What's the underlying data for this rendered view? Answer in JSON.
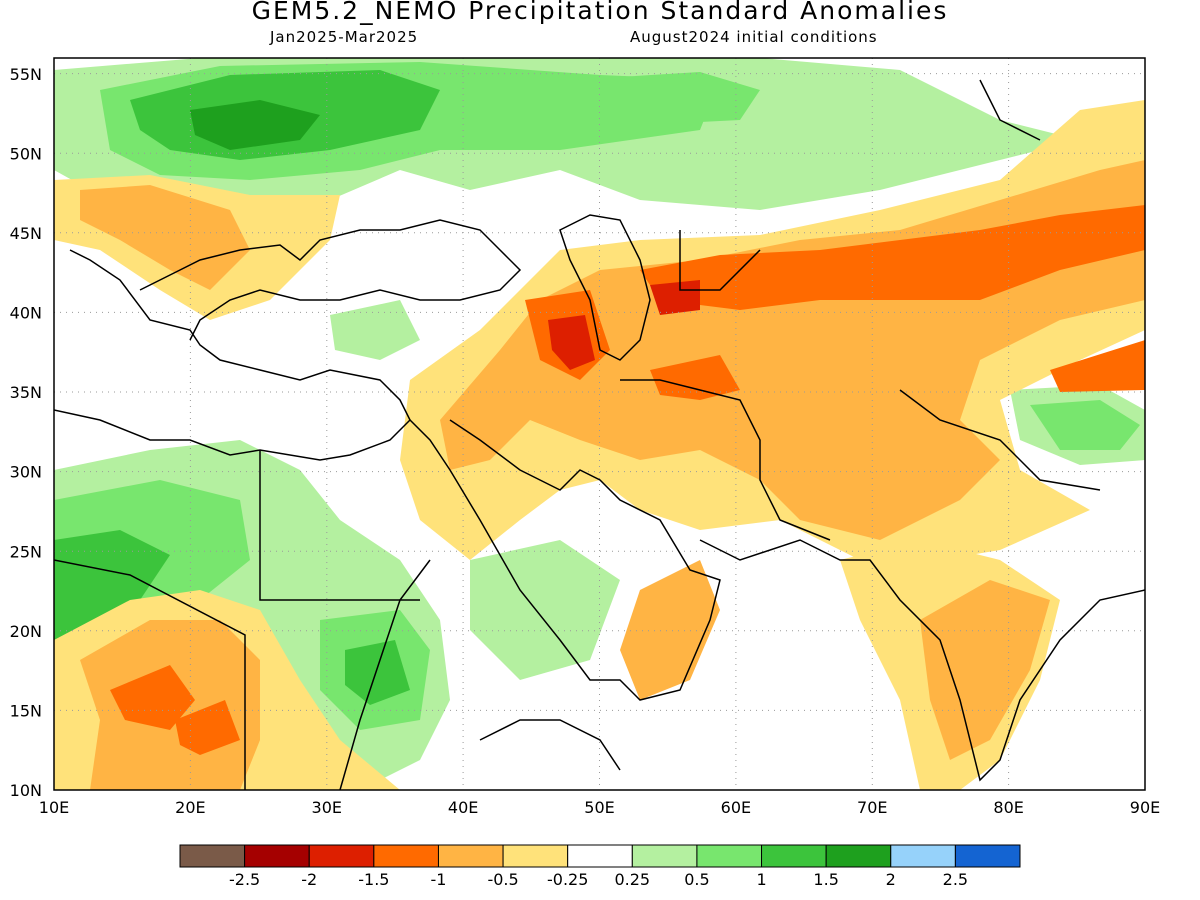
{
  "header": {
    "title": "GEM5.2_NEMO Precipitation Standard Anomalies",
    "period": "Jan2025-Mar2025",
    "init": "August2024 initial conditions"
  },
  "map": {
    "lon_range": [
      10,
      90
    ],
    "lat_range": [
      10,
      56
    ],
    "lon_ticks": [
      10,
      20,
      30,
      40,
      50,
      60,
      70,
      80,
      90
    ],
    "lat_ticks": [
      10,
      15,
      20,
      25,
      30,
      35,
      40,
      45,
      50,
      55
    ],
    "lon_labels": [
      "10E",
      "20E",
      "30E",
      "40E",
      "50E",
      "60E",
      "70E",
      "80E",
      "90E"
    ],
    "lat_labels": [
      "10N",
      "15N",
      "20N",
      "25N",
      "30N",
      "35N",
      "40N",
      "45N",
      "50N",
      "55N"
    ]
  },
  "colorbar": {
    "colors": [
      "#7a5a48",
      "#a50000",
      "#dd1f00",
      "#ff6a00",
      "#ffb444",
      "#ffe27a",
      "#ffffff",
      "#b4f0a0",
      "#78e66e",
      "#3cc43c",
      "#1ea01e",
      "#96d2fa",
      "#1464d2"
    ],
    "labels": [
      "-2.5",
      "-2",
      "-1.5",
      "-1",
      "-0.5",
      "-0.25",
      "0.25",
      "0.5",
      "1",
      "1.5",
      "2",
      "2.5"
    ]
  }
}
